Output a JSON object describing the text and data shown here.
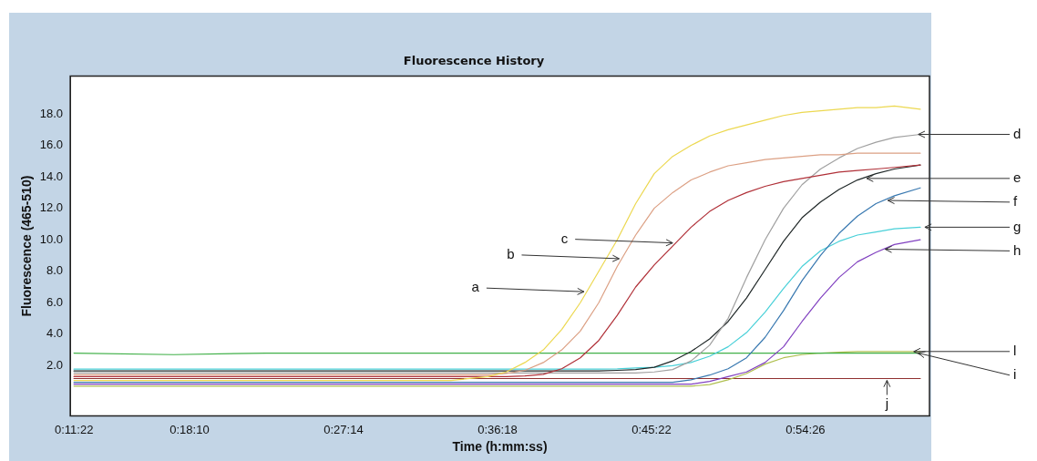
{
  "chart_data": {
    "type": "line",
    "title": "Fluorescence History",
    "xlabel": "Time (h:mm:ss)",
    "ylabel": "Fluorescence (465-510)",
    "x": [
      0.1894,
      0.2874,
      0.378,
      0.4687,
      0.5593,
      0.5956,
      0.6137,
      0.6319,
      0.65,
      0.6681,
      0.6863,
      0.7044,
      0.7225,
      0.7406,
      0.7588,
      0.7769,
      0.795,
      0.8132,
      0.8313,
      0.8494,
      0.8676,
      0.8857,
      0.9038,
      0.922,
      0.9401,
      0.9582,
      0.9764,
      0.9945,
      1.0199
    ],
    "series": [
      {
        "color": "#ecd850",
        "values": [
          1.06,
          1.06,
          1.06,
          1.06,
          1.06,
          1.3,
          1.6,
          2.2,
          3.0,
          4.3,
          6.0,
          8.0,
          10.0,
          12.3,
          14.2,
          15.3,
          16.0,
          16.6,
          17.0,
          17.3,
          17.6,
          17.9,
          18.1,
          18.2,
          18.3,
          18.4,
          18.4,
          18.5,
          18.3
        ]
      },
      {
        "color": "#dca084",
        "values": [
          1.42,
          1.42,
          1.42,
          1.42,
          1.42,
          1.42,
          1.5,
          1.7,
          2.2,
          3.0,
          4.2,
          6.0,
          8.3,
          10.3,
          12.0,
          13.0,
          13.8,
          14.3,
          14.7,
          14.9,
          15.1,
          15.2,
          15.3,
          15.4,
          15.4,
          15.5,
          15.5,
          15.5,
          15.5
        ]
      },
      {
        "color": "#b03038",
        "values": [
          1.3,
          1.3,
          1.3,
          1.3,
          1.3,
          1.3,
          1.3,
          1.35,
          1.45,
          1.8,
          2.5,
          3.6,
          5.2,
          7.0,
          8.4,
          9.6,
          10.8,
          11.8,
          12.5,
          13.0,
          13.4,
          13.7,
          13.9,
          14.1,
          14.3,
          14.4,
          14.5,
          14.6,
          14.75
        ]
      },
      {
        "color": "#a0a0a0",
        "values": [
          1.54,
          1.54,
          1.54,
          1.54,
          1.54,
          1.54,
          1.54,
          1.54,
          1.54,
          1.54,
          1.54,
          1.54,
          1.54,
          1.54,
          1.6,
          1.75,
          2.3,
          3.3,
          5.0,
          7.6,
          10.0,
          12.0,
          13.5,
          14.5,
          15.2,
          15.8,
          16.2,
          16.5,
          16.7
        ]
      },
      {
        "color": "#202828",
        "values": [
          1.66,
          1.66,
          1.66,
          1.66,
          1.66,
          1.66,
          1.66,
          1.66,
          1.66,
          1.66,
          1.66,
          1.66,
          1.7,
          1.75,
          1.9,
          2.3,
          2.9,
          3.7,
          4.8,
          6.3,
          8.1,
          9.9,
          11.4,
          12.4,
          13.2,
          13.8,
          14.2,
          14.5,
          14.75
        ]
      },
      {
        "color": "#3878b0",
        "values": [
          0.94,
          0.94,
          0.94,
          0.94,
          0.94,
          0.94,
          0.94,
          0.94,
          0.94,
          0.94,
          0.94,
          0.94,
          0.94,
          0.94,
          0.94,
          0.94,
          1.1,
          1.4,
          1.8,
          2.5,
          3.8,
          5.5,
          7.4,
          9.0,
          10.4,
          11.5,
          12.3,
          12.8,
          13.3
        ]
      },
      {
        "color": "#48d0d8",
        "values": [
          1.78,
          1.78,
          1.78,
          1.78,
          1.78,
          1.78,
          1.78,
          1.78,
          1.78,
          1.78,
          1.78,
          1.78,
          1.8,
          1.85,
          1.9,
          2.0,
          2.2,
          2.6,
          3.2,
          4.1,
          5.4,
          6.9,
          8.3,
          9.3,
          9.9,
          10.3,
          10.5,
          10.7,
          10.8
        ]
      },
      {
        "color": "#8040c0",
        "values": [
          0.82,
          0.82,
          0.82,
          0.82,
          0.82,
          0.82,
          0.82,
          0.82,
          0.82,
          0.82,
          0.82,
          0.82,
          0.82,
          0.82,
          0.82,
          0.82,
          0.82,
          1.0,
          1.3,
          1.6,
          2.2,
          3.2,
          4.8,
          6.3,
          7.6,
          8.6,
          9.2,
          9.7,
          10.0
        ]
      },
      {
        "color": "#40b048",
        "values": [
          2.8,
          2.7,
          2.8,
          2.8,
          2.8,
          2.8,
          2.8,
          2.8,
          2.8,
          2.8,
          2.8,
          2.8,
          2.8,
          2.8,
          2.8,
          2.8,
          2.8,
          2.8,
          2.8,
          2.8,
          2.8,
          2.8,
          2.8,
          2.8,
          2.8,
          2.8,
          2.8,
          2.8,
          2.8
        ]
      },
      {
        "color": "#b0c050",
        "values": [
          0.7,
          0.7,
          0.7,
          0.7,
          0.7,
          0.7,
          0.7,
          0.7,
          0.7,
          0.7,
          0.7,
          0.7,
          0.7,
          0.7,
          0.7,
          0.7,
          0.7,
          0.8,
          1.1,
          1.5,
          2.1,
          2.5,
          2.7,
          2.8,
          2.85,
          2.9,
          2.9,
          2.9,
          2.9
        ]
      },
      {
        "color": "#903030",
        "values": [
          1.18,
          1.18,
          1.18,
          1.18,
          1.18,
          1.18,
          1.18,
          1.18,
          1.18,
          1.18,
          1.18,
          1.18,
          1.18,
          1.18,
          1.18,
          1.18,
          1.18,
          1.18,
          1.18,
          1.18,
          1.18,
          1.18,
          1.18,
          1.18,
          1.18,
          1.18,
          1.18,
          1.18,
          1.18
        ]
      }
    ],
    "xlim": [
      0.1858,
      1.0289
    ],
    "xticks": [
      {
        "value": 0.189444,
        "label": "0:11:22"
      },
      {
        "value": 0.302778,
        "label": "0:18:10"
      },
      {
        "value": 0.453889,
        "label": "0:27:14"
      },
      {
        "value": 0.605,
        "label": "0:36:18"
      },
      {
        "value": 0.756111,
        "label": "0:45:22"
      },
      {
        "value": 0.907222,
        "label": "0:54:26"
      }
    ],
    "ylim": [
      -1.2,
      20.4
    ],
    "yticks": [
      {
        "value": 2,
        "label": "2.0"
      },
      {
        "value": 4,
        "label": "4.0"
      },
      {
        "value": 6,
        "label": "6.0"
      },
      {
        "value": 8,
        "label": "8.0"
      },
      {
        "value": 10,
        "label": "10.0"
      },
      {
        "value": 12,
        "label": "12.0"
      },
      {
        "value": 14,
        "label": "14.0"
      },
      {
        "value": 16,
        "label": "16.0"
      },
      {
        "value": 18,
        "label": "18.0"
      }
    ],
    "annotations": [
      {
        "text": "a",
        "x": 0.6926,
        "y": 6.7
      },
      {
        "text": "b",
        "x": 0.7271,
        "y": 8.8
      },
      {
        "text": "c",
        "x": 0.7796,
        "y": 9.8
      },
      {
        "text": "d",
        "x": 1.0153,
        "y": 16.7
      },
      {
        "text": "e",
        "x": 0.9646,
        "y": 13.9
      },
      {
        "text": "f",
        "x": 0.9854,
        "y": 12.5
      },
      {
        "text": "g",
        "x": 1.0217,
        "y": 10.8
      },
      {
        "text": "h",
        "x": 0.9827,
        "y": 9.4
      },
      {
        "text": "l",
        "x": 1.0108,
        "y": 2.9
      },
      {
        "text": "i",
        "x": 1.0153,
        "y": 2.8
      },
      {
        "text": "j",
        "x": 0.9872,
        "y": 1.18
      }
    ],
    "grid": false,
    "legend": false,
    "marker": "none",
    "line_style": "solid"
  }
}
